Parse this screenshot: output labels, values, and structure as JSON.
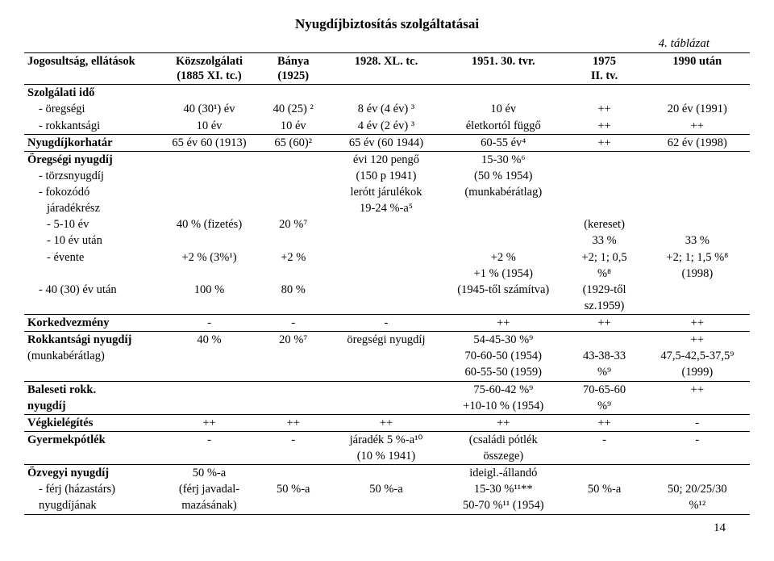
{
  "title": "Nyugdíjbiztosítás szolgáltatásai",
  "tablazat": "4. táblázat",
  "page_num": "14",
  "headers": {
    "h0": "Jogosultság, ellátások",
    "h1a": "Közszolgálati",
    "h1b": "(1885 XI. tc.)",
    "h2a": "Bánya",
    "h2b": "(1925)",
    "h3": "1928. XL. tc.",
    "h4": "1951. 30. tvr.",
    "h5a": "1975",
    "h5b": "II. tv.",
    "h6": "1990 után"
  },
  "rows": {
    "r1": {
      "a": "Szolgálati idő"
    },
    "r1a": {
      "a": "- öregségi",
      "b": "40 (30¹) év",
      "c": "40 (25) ²",
      "d": "8 év (4 év) ³",
      "e": "10 év",
      "f": "++",
      "g": "20 év (1991)"
    },
    "r1b": {
      "a": "- rokkantsági",
      "b": "10 év",
      "c": "10 év",
      "d": "4 év (2 év) ³",
      "e": "életkortól függő",
      "f": "++",
      "g": "++"
    },
    "r2": {
      "a": "Nyugdíjkorhatár",
      "b": "65 év 60 (1913)",
      "c": "65 (60)²",
      "d": "65 év (60 1944)",
      "e": "60-55 év⁴",
      "f": "++",
      "g": "62 év (1998)"
    },
    "r3": {
      "a": "Öregségi nyugdíj",
      "d": "évi 120 pengő",
      "e": "15-30 %⁶"
    },
    "r3a": {
      "a": "- törzsnyugdíj",
      "d": "(150 p 1941)",
      "e": "(50 % 1954)"
    },
    "r3b": {
      "a": "- fokozódó",
      "d": "lerótt járulékok",
      "e": "(munkabérátlag)"
    },
    "r3c": {
      "a": "járadékrész",
      "d": "19-24 %-a⁵"
    },
    "r3d": {
      "a": "- 5-10 év",
      "b": "40 % (fizetés)",
      "c": "20 %⁷",
      "f": "(kereset)"
    },
    "r3e": {
      "a": "- 10 év után",
      "f": "33 %",
      "g": "33 %"
    },
    "r3f": {
      "a": "- évente",
      "b": "+2 % (3%¹)",
      "c": "+2 %",
      "e": "+2 %",
      "f": "+2; 1; 0,5",
      "g": "+2; 1; 1,5 %⁸"
    },
    "r3g": {
      "e": "+1 % (1954)",
      "f": "%⁸",
      "g": "(1998)"
    },
    "r3h": {
      "a": "- 40 (30) év után",
      "b": "100 %",
      "c": "80 %",
      "e": "(1945-től számítva)",
      "f": "(1929-től"
    },
    "r3i": {
      "f": "sz.1959)"
    },
    "r4": {
      "a": "Korkedvezmény",
      "b": "-",
      "c": "-",
      "d": "-",
      "e": "++",
      "f": "++",
      "g": "++"
    },
    "r5": {
      "a": "Rokkantsági nyugdíj",
      "b": "40 %",
      "c": "20 %⁷",
      "d": "öregségi nyugdíj",
      "e": "54-45-30 %⁹",
      "g": "++"
    },
    "r5a": {
      "a": "(munkabérátlag)",
      "e": "70-60-50 (1954)",
      "f": "43-38-33",
      "g": "47,5-42,5-37,5⁹"
    },
    "r5b": {
      "e": "60-55-50 (1959)",
      "f": "%⁹",
      "g": "(1999)"
    },
    "r6": {
      "a": "Baleseti rokk.",
      "e": "75-60-42 %⁹",
      "f": "70-65-60",
      "g": "++"
    },
    "r6a": {
      "a": "nyugdíj",
      "e": "+10-10 % (1954)",
      "f": "%⁹"
    },
    "r7": {
      "a": "Végkielégítés",
      "b": "++",
      "c": "++",
      "d": "++",
      "e": "++",
      "f": "++",
      "g": "-"
    },
    "r8": {
      "a": "Gyermekpótlék",
      "b": "-",
      "c": "-",
      "d": "járadék 5 %-a¹⁰",
      "e": "(családi pótlék",
      "f": "-",
      "g": "-"
    },
    "r8a": {
      "d": "(10 % 1941)",
      "e": "összege)"
    },
    "r9": {
      "a": "Özvegyi nyugdíj",
      "b": "50 %-a",
      "e": "ideigl.-állandó"
    },
    "r9a": {
      "a": "- férj (házastárs)",
      "b": "(férj javadal-",
      "c": "50 %-a",
      "d": "50 %-a",
      "e": "15-30 %¹¹**",
      "f": "50 %-a",
      "g": "50; 20/25/30"
    },
    "r9b": {
      "a": "nyugdíjának",
      "b": "mazásának)",
      "e": "50-70 %¹¹ (1954)",
      "g": "%¹²"
    }
  }
}
